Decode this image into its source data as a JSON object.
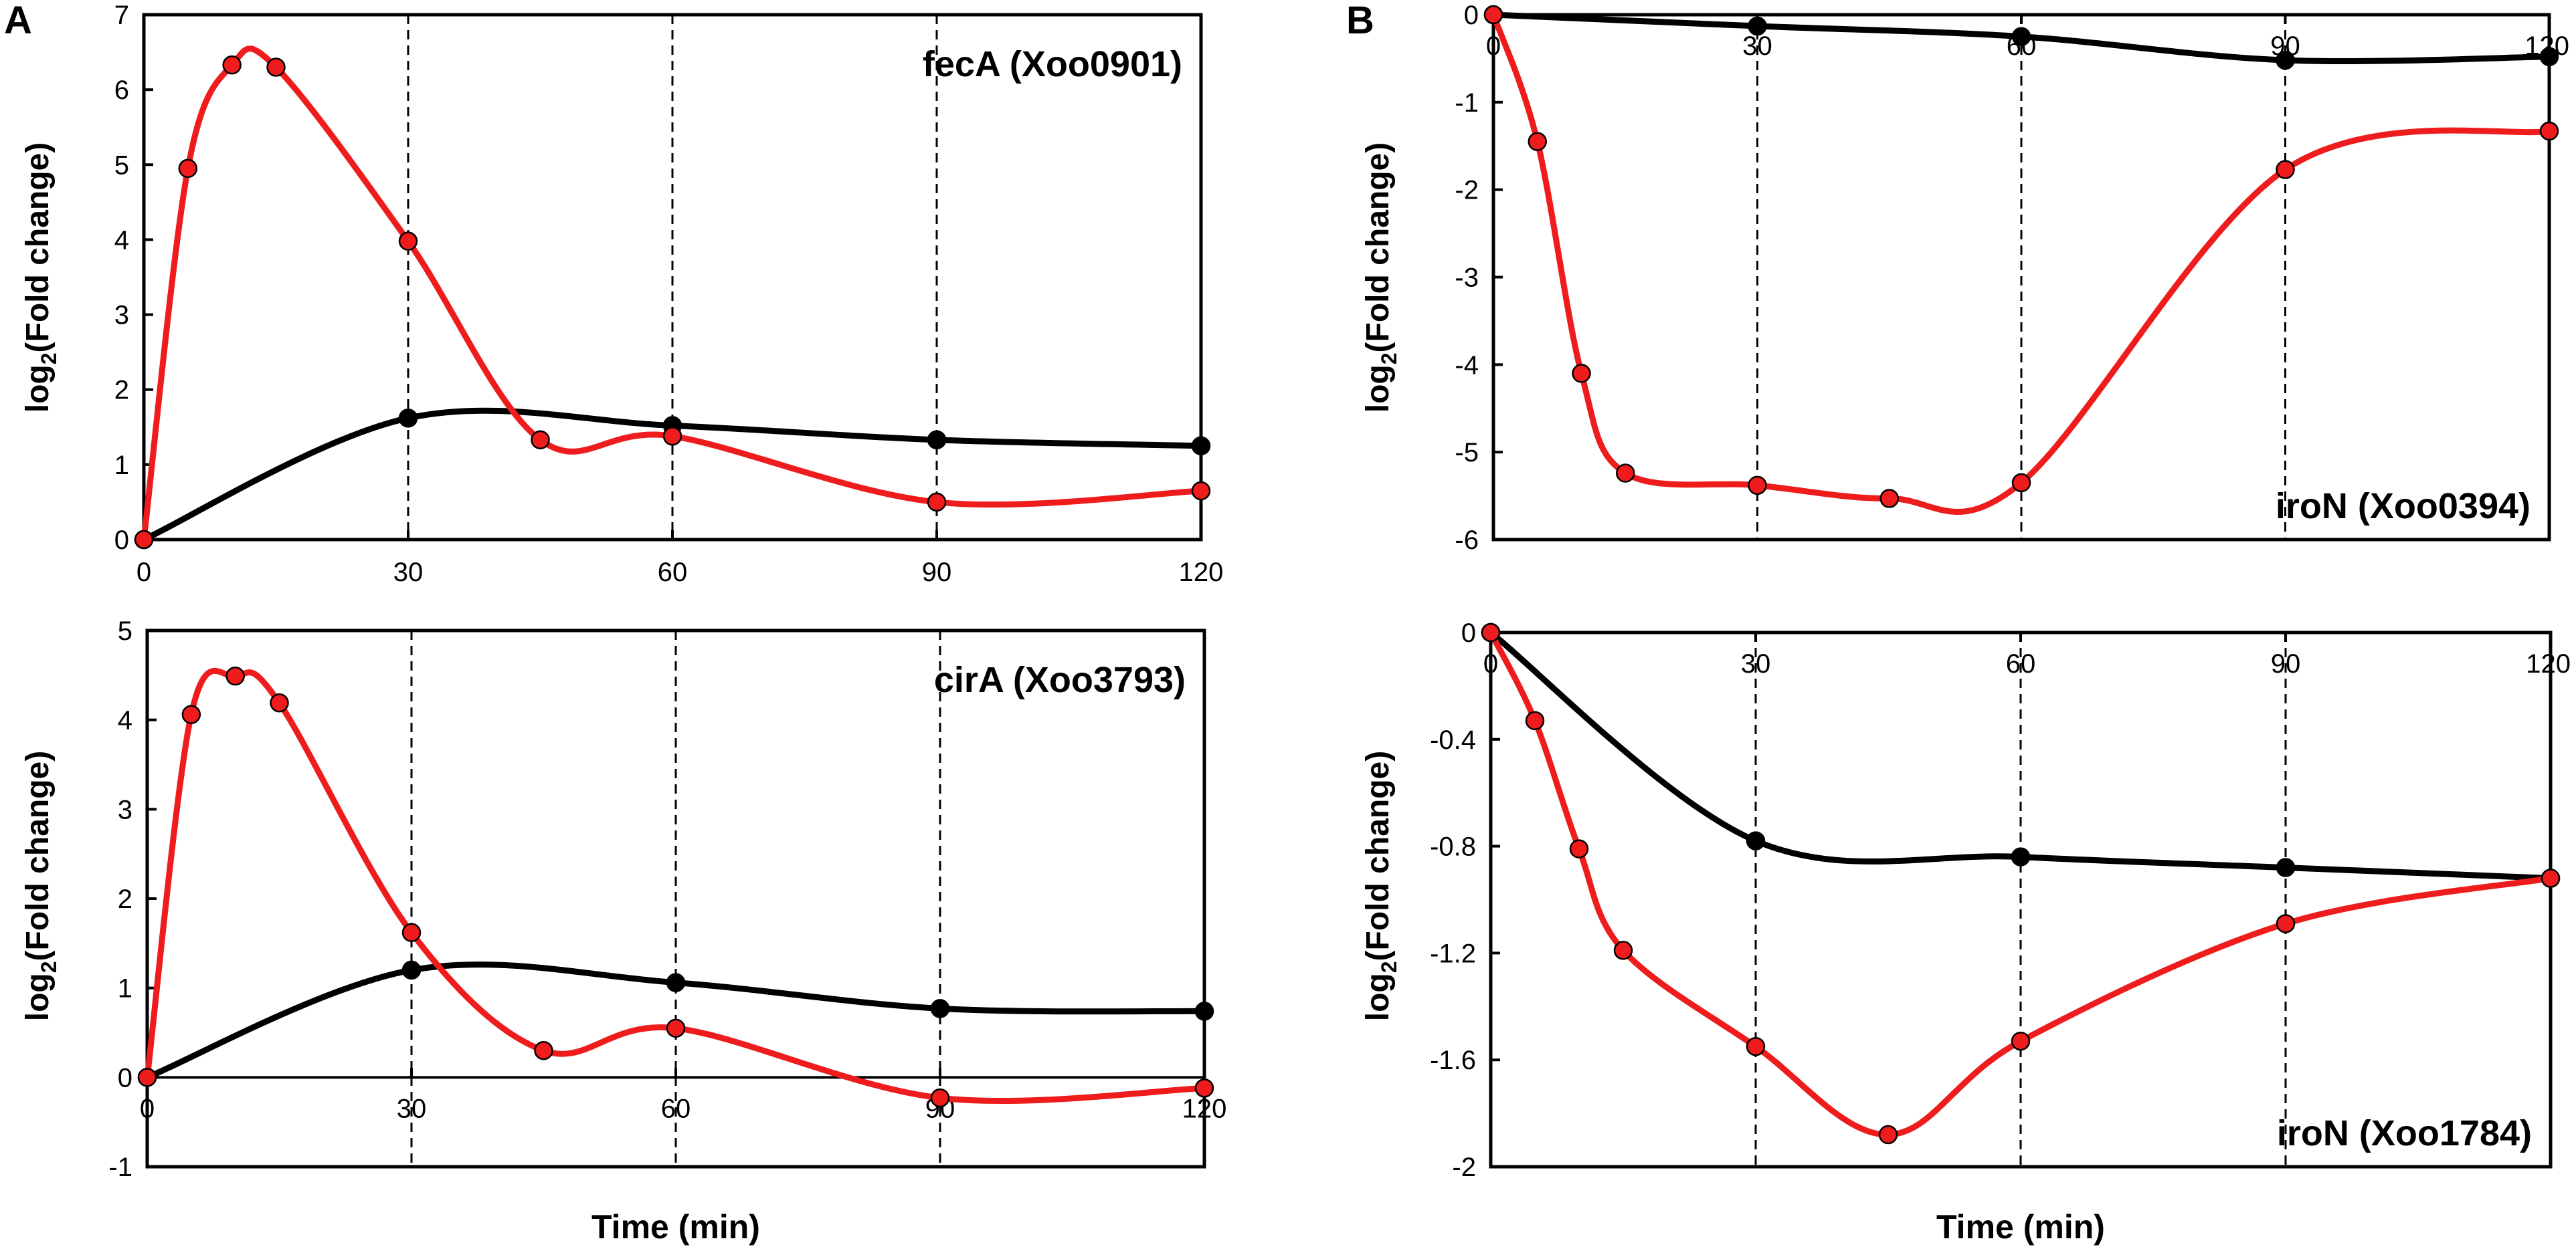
{
  "figure": {
    "panel_labels": [
      "A",
      "B"
    ],
    "xlabel": "Time (min)",
    "ylabel_prefix": "log",
    "ylabel_sub": "2",
    "ylabel_suffix": "(Fold change)"
  },
  "colors": {
    "series_black": "#000000",
    "series_red": "#ee1c1c",
    "axis": "#000000"
  },
  "chart_data": [
    {
      "id": "fecA",
      "type": "line",
      "title": "fecA (Xoo0901)",
      "xlabel": "",
      "ylabel": "log2(Fold change)",
      "xlim": [
        0,
        120
      ],
      "ylim": [
        0,
        7
      ],
      "xticks": [
        0,
        30,
        60,
        90,
        120
      ],
      "yticks": [
        0,
        1,
        2,
        3,
        4,
        5,
        6,
        7
      ],
      "xtick_labels": [
        "0",
        "30",
        "60",
        "90",
        "120"
      ],
      "ytick_labels": [
        "0",
        "1",
        "2",
        "3",
        "4",
        "5",
        "6",
        "7"
      ],
      "xtick_label_position": "bottom",
      "title_position": "top-right",
      "series": [
        {
          "name": "black",
          "x": [
            0,
            30,
            60,
            90,
            120
          ],
          "y": [
            0,
            1.62,
            1.52,
            1.33,
            1.25
          ]
        },
        {
          "name": "red",
          "x": [
            0,
            5,
            10,
            15,
            30,
            45,
            60,
            90,
            120
          ],
          "y": [
            0,
            4.95,
            6.33,
            6.3,
            3.98,
            1.33,
            1.38,
            0.5,
            0.65
          ]
        }
      ]
    },
    {
      "id": "cirA",
      "type": "line",
      "title": "cirA (Xoo3793)",
      "xlabel": "Time (min)",
      "ylabel": "log2(Fold change)",
      "xlim": [
        0,
        120
      ],
      "ylim": [
        -1,
        5
      ],
      "xticks": [
        0,
        30,
        60,
        90,
        120
      ],
      "yticks": [
        -1,
        0,
        1,
        2,
        3,
        4,
        5
      ],
      "xtick_labels": [
        "0",
        "30",
        "60",
        "90",
        "120"
      ],
      "ytick_labels": [
        "-1",
        "0",
        "1",
        "2",
        "3",
        "4",
        "5"
      ],
      "xtick_label_position": "zero-line",
      "title_position": "top-right",
      "series": [
        {
          "name": "black",
          "x": [
            0,
            30,
            60,
            90,
            120
          ],
          "y": [
            0,
            1.2,
            1.06,
            0.77,
            0.74
          ]
        },
        {
          "name": "red",
          "x": [
            0,
            5,
            10,
            15,
            30,
            45,
            60,
            90,
            120
          ],
          "y": [
            0,
            4.06,
            4.49,
            4.19,
            1.62,
            0.3,
            0.55,
            -0.23,
            -0.12
          ]
        }
      ]
    },
    {
      "id": "iroN_0394",
      "type": "line",
      "title": "iroN (Xoo0394)",
      "xlabel": "",
      "ylabel": "log2(Fold change)",
      "xlim": [
        0,
        120
      ],
      "ylim": [
        -6,
        0
      ],
      "xticks": [
        0,
        30,
        60,
        90,
        120
      ],
      "yticks": [
        -6,
        -5,
        -4,
        -3,
        -2,
        -1,
        0
      ],
      "xtick_labels": [
        "0",
        "30",
        "60",
        "90",
        "120"
      ],
      "ytick_labels": [
        "-6",
        "-5",
        "-4",
        "-3",
        "-2",
        "-1",
        "0"
      ],
      "xtick_label_position": "top",
      "title_position": "bottom-right",
      "series": [
        {
          "name": "black",
          "x": [
            0,
            30,
            60,
            90,
            120
          ],
          "y": [
            0,
            -0.13,
            -0.25,
            -0.52,
            -0.48
          ]
        },
        {
          "name": "red",
          "x": [
            0,
            5,
            10,
            15,
            30,
            45,
            60,
            90,
            120
          ],
          "y": [
            0,
            -1.45,
            -4.1,
            -5.24,
            -5.38,
            -5.53,
            -5.35,
            -1.77,
            -1.33
          ]
        }
      ]
    },
    {
      "id": "iroN_1784",
      "type": "line",
      "title": "iroN (Xoo1784)",
      "xlabel": "Time (min)",
      "ylabel": "log2(Fold change)",
      "xlim": [
        0,
        120
      ],
      "ylim": [
        -2,
        0
      ],
      "xticks": [
        0,
        30,
        60,
        90,
        120
      ],
      "yticks": [
        -2,
        -1.6,
        -1.2,
        -0.8,
        -0.4,
        0
      ],
      "xtick_labels": [
        "0",
        "30",
        "60",
        "90",
        "120"
      ],
      "ytick_labels": [
        "-2",
        "-1.6",
        "-1.2",
        "-0.8",
        "-0.4",
        "0"
      ],
      "xtick_label_position": "top",
      "title_position": "bottom-right",
      "series": [
        {
          "name": "black",
          "x": [
            0,
            30,
            60,
            90,
            120
          ],
          "y": [
            0,
            -0.78,
            -0.84,
            -0.88,
            -0.92
          ]
        },
        {
          "name": "red",
          "x": [
            0,
            5,
            10,
            15,
            30,
            45,
            60,
            90,
            120
          ],
          "y": [
            0,
            -0.33,
            -0.81,
            -1.19,
            -1.55,
            -1.88,
            -1.53,
            -1.09,
            -0.92
          ]
        }
      ]
    }
  ]
}
